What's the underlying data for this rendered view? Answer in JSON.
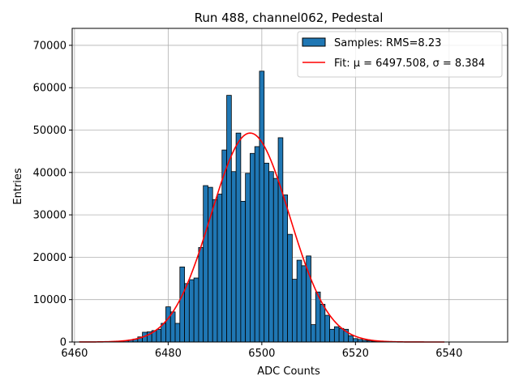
{
  "chart_data": {
    "type": "bar",
    "title": "Run 488, channel062, Pedestal",
    "xlabel": "ADC Counts",
    "ylabel": "Entries",
    "xlim": [
      6459.5,
      6552.5
    ],
    "ylim": [
      0,
      74000
    ],
    "xticks": [
      6460,
      6480,
      6500,
      6520,
      6540
    ],
    "yticks": [
      0,
      10000,
      20000,
      30000,
      40000,
      50000,
      60000,
      70000
    ],
    "grid": true,
    "legend_position": "top-right",
    "colors": {
      "bars": "#1f77b4",
      "bar_edge": "#000000",
      "fit": "#ff0000",
      "grid": "#b0b0b0"
    },
    "histogram": {
      "name": "Samples: RMS=8.23",
      "bin_width": 1,
      "x": [
        6469,
        6470,
        6471,
        6472,
        6473,
        6474,
        6475,
        6476,
        6477,
        6478,
        6479,
        6480,
        6481,
        6482,
        6483,
        6484,
        6485,
        6486,
        6487,
        6488,
        6489,
        6490,
        6491,
        6492,
        6493,
        6494,
        6495,
        6496,
        6497,
        6498,
        6499,
        6500,
        6501,
        6502,
        6503,
        6504,
        6505,
        6506,
        6507,
        6508,
        6509,
        6510,
        6511,
        6512,
        6513,
        6514,
        6515,
        6516,
        6517,
        6518,
        6519,
        6520,
        6521,
        6522,
        6523,
        6524,
        6525,
        6526
      ],
      "values": [
        100,
        200,
        300,
        500,
        700,
        1200,
        2300,
        2400,
        2700,
        3000,
        4400,
        8300,
        7100,
        4400,
        17700,
        13800,
        14700,
        15100,
        22300,
        36900,
        36500,
        33600,
        34900,
        45300,
        58200,
        40200,
        49300,
        33200,
        39800,
        44500,
        46100,
        63900,
        42200,
        40200,
        38600,
        48200,
        34700,
        25400,
        14800,
        19300,
        18000,
        20300,
        4100,
        11800,
        8900,
        6300,
        3000,
        3600,
        3200,
        3000,
        1500,
        800,
        600,
        400,
        300,
        200,
        100,
        50
      ]
    },
    "fit": {
      "name": "Fit: μ = 6497.508, σ = 8.384",
      "mu": 6497.508,
      "sigma": 8.384,
      "amplitude": 49300,
      "x_range": [
        6461,
        6539
      ]
    }
  }
}
